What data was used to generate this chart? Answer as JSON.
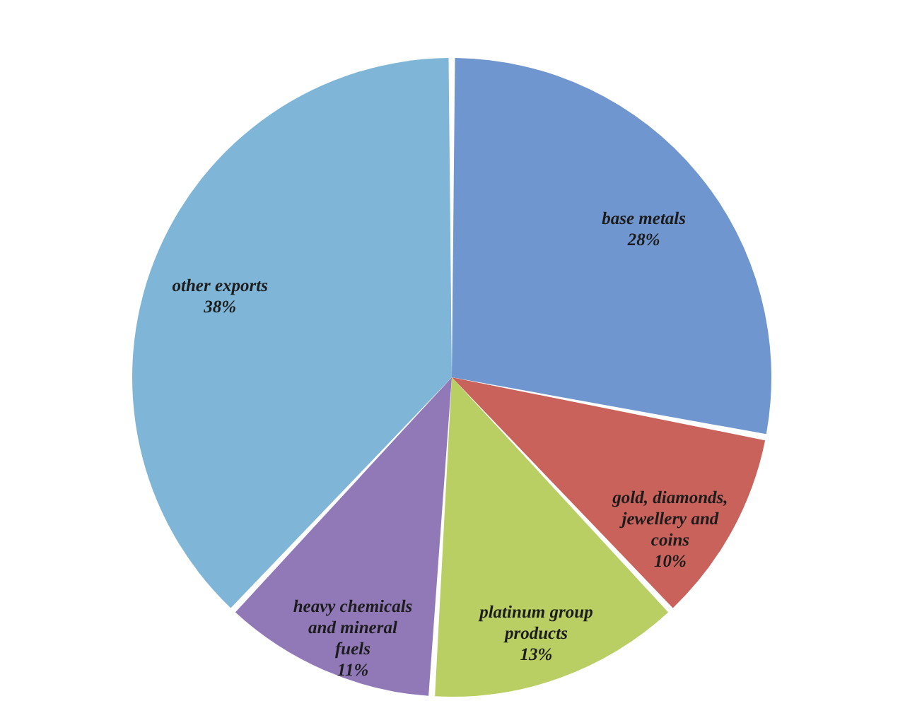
{
  "chart_data": {
    "type": "pie",
    "categories": [
      "base metals",
      "gold, diamonds, jewellery and coins",
      "platinum group products",
      "heavy chemicals and mineral fuels",
      "other exports"
    ],
    "values": [
      28,
      10,
      13,
      11,
      38
    ],
    "value_labels": [
      "28%",
      "10%",
      "13%",
      "11%",
      "38%"
    ],
    "colors": [
      "#7096cf",
      "#c8625b",
      "#b9cf63",
      "#9179b8",
      "#7fb6d7"
    ]
  }
}
